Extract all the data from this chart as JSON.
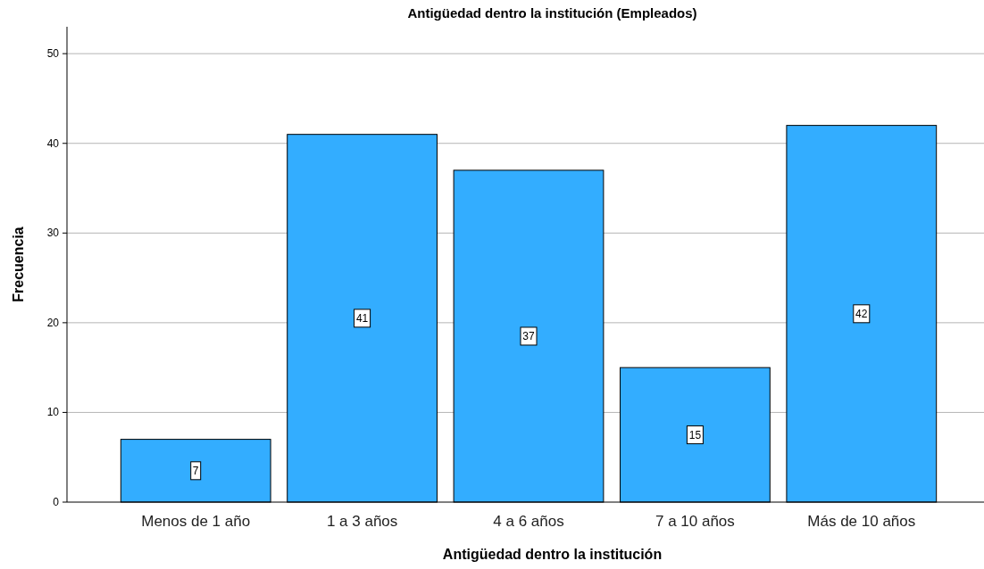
{
  "chart_data": {
    "type": "bar",
    "title": "Antigüedad dentro la institución (Empleados)",
    "xlabel": "Antigüedad dentro la institución",
    "ylabel": "Frecuencia",
    "categories": [
      "Menos de 1 año",
      "1 a 3 años",
      "4 a 6 años",
      "7 a 10 años",
      "Más de 10 años"
    ],
    "values": [
      7,
      41,
      37,
      15,
      42
    ],
    "color": "#33adff",
    "ylim": [
      0,
      53
    ],
    "yticks": [
      0,
      10,
      20,
      30,
      40,
      50
    ],
    "grid": "y",
    "data_labels": true
  }
}
